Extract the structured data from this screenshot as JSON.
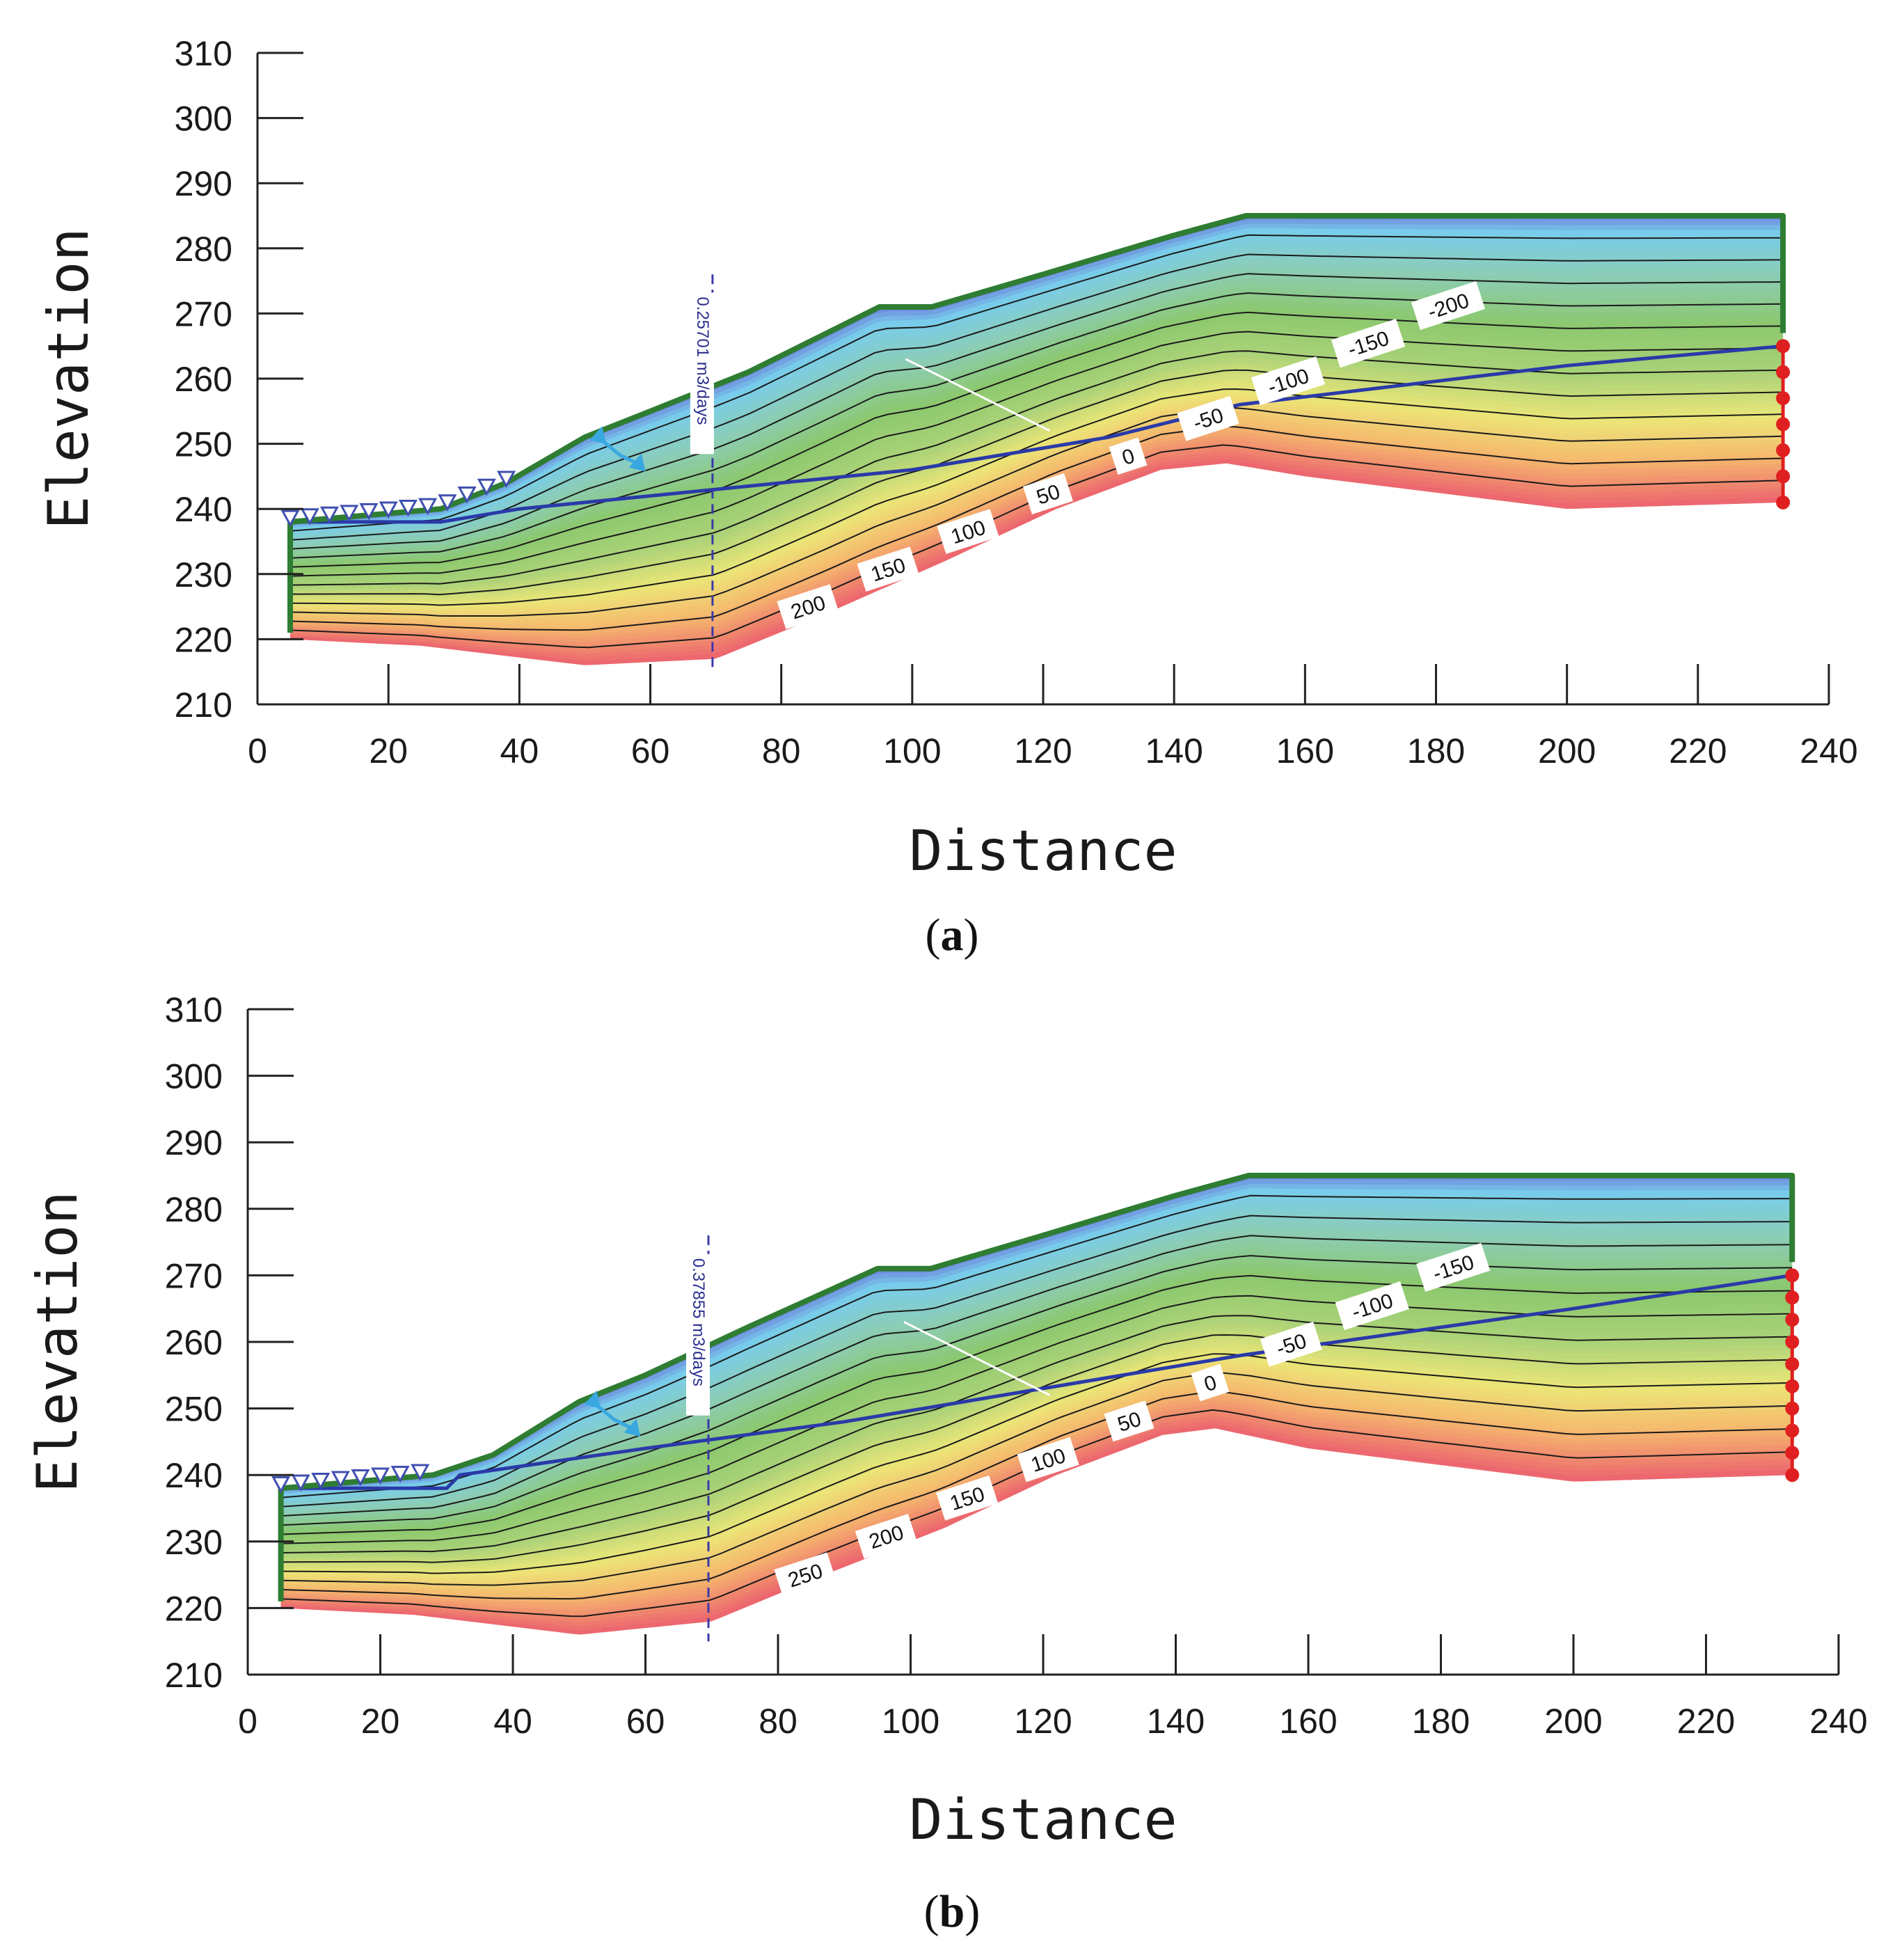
{
  "charts": [
    {
      "panel_label": "a",
      "flux_label": "0.25701 m3/days",
      "chart_data": {
        "type": "contour",
        "title": "",
        "xlabel": "Distance",
        "ylabel": "Elevation",
        "xlim": [
          0,
          240
        ],
        "ylim": [
          210,
          310
        ],
        "x_ticks": [
          0,
          20,
          40,
          60,
          80,
          100,
          120,
          140,
          160,
          180,
          200,
          220,
          240
        ],
        "y_ticks": [
          210,
          220,
          230,
          240,
          250,
          260,
          270,
          280,
          290,
          300,
          310
        ],
        "ground_surface": [
          [
            5,
            238
          ],
          [
            28,
            240
          ],
          [
            38,
            244
          ],
          [
            50,
            251
          ],
          [
            60,
            255
          ],
          [
            75,
            261
          ],
          [
            95,
            271
          ],
          [
            103,
            271
          ],
          [
            120,
            276
          ],
          [
            140,
            282
          ],
          [
            151,
            285
          ],
          [
            233,
            285
          ]
        ],
        "bottom_boundary": [
          [
            5,
            220
          ],
          [
            25,
            219
          ],
          [
            50,
            216
          ],
          [
            70,
            217
          ],
          [
            87,
            224
          ],
          [
            105,
            232
          ],
          [
            122,
            240
          ],
          [
            138,
            246
          ],
          [
            148,
            247
          ],
          [
            160,
            245
          ],
          [
            200,
            240
          ],
          [
            233,
            241
          ]
        ],
        "phreatic_line": [
          [
            5,
            238
          ],
          [
            28,
            238
          ],
          [
            40,
            240
          ],
          [
            70,
            243
          ],
          [
            100,
            246
          ],
          [
            130,
            251
          ],
          [
            150,
            256
          ],
          [
            200,
            262
          ],
          [
            233,
            265
          ]
        ],
        "contour_levels": [
          200,
          150,
          100,
          50,
          0,
          -50,
          -100,
          -150,
          -200
        ],
        "flux_section_x": 69.5,
        "flux_value": 0.25701,
        "flux_unit": "m3/days"
      }
    },
    {
      "panel_label": "b",
      "flux_label": "0.37855 m3/days",
      "chart_data": {
        "type": "contour",
        "title": "",
        "xlabel": "Distance",
        "ylabel": "Elevation",
        "xlim": [
          0,
          240
        ],
        "ylim": [
          210,
          310
        ],
        "x_ticks": [
          0,
          20,
          40,
          60,
          80,
          100,
          120,
          140,
          160,
          180,
          200,
          220,
          240
        ],
        "y_ticks": [
          210,
          220,
          230,
          240,
          250,
          260,
          270,
          280,
          290,
          300,
          310
        ],
        "ground_surface": [
          [
            5,
            238
          ],
          [
            28,
            240
          ],
          [
            37,
            243
          ],
          [
            50,
            251
          ],
          [
            60,
            255
          ],
          [
            75,
            262
          ],
          [
            95,
            271
          ],
          [
            103,
            271
          ],
          [
            120,
            276
          ],
          [
            140,
            282
          ],
          [
            151,
            285
          ],
          [
            233,
            285
          ]
        ],
        "bottom_boundary": [
          [
            5,
            220
          ],
          [
            25,
            219
          ],
          [
            50,
            216
          ],
          [
            70,
            218
          ],
          [
            87,
            225
          ],
          [
            105,
            232
          ],
          [
            122,
            240
          ],
          [
            138,
            246
          ],
          [
            146,
            247
          ],
          [
            160,
            244
          ],
          [
            200,
            239
          ],
          [
            233,
            240
          ]
        ],
        "phreatic_line": [
          [
            5,
            238
          ],
          [
            30,
            238
          ],
          [
            32,
            240
          ],
          [
            60,
            244
          ],
          [
            90,
            248
          ],
          [
            120,
            253
          ],
          [
            150,
            258
          ],
          [
            200,
            265
          ],
          [
            233,
            270
          ]
        ],
        "contour_levels": [
          250,
          200,
          150,
          100,
          50,
          0,
          -50,
          -100,
          -150
        ],
        "flux_section_x": 69.5,
        "flux_value": 0.37855,
        "flux_unit": "m3/days"
      }
    }
  ]
}
